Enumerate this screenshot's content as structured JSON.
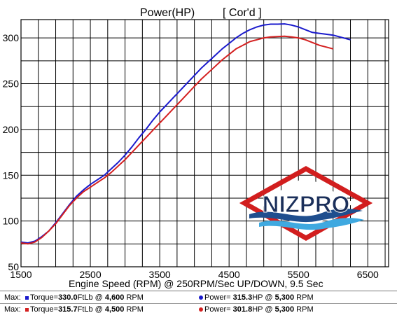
{
  "chart_data": {
    "type": "line",
    "title": "Power(HP)",
    "title_note": "[ Cor'd ]",
    "xlabel": "Engine Speed (RPM) @ 250RPM/Sec UP/DOWN, 9.5 Sec",
    "ylabel": "",
    "xlim": [
      1500,
      6800
    ],
    "ylim": [
      50,
      320
    ],
    "x_ticks": [
      1500,
      2500,
      3500,
      4500,
      5500,
      6500
    ],
    "x_tick_labels": [
      "1500",
      "2500",
      "3500",
      "4500",
      "5500",
      "6500"
    ],
    "x_grid_step": 250,
    "y_ticks": [
      50,
      100,
      150,
      200,
      250,
      300
    ],
    "y_tick_labels": [
      "50",
      "100",
      "150",
      "200",
      "250",
      "300"
    ],
    "y_grid_step": 25,
    "grid": true,
    "series": [
      {
        "color": "#1a1acc",
        "x": [
          1500,
          1600,
          1700,
          1800,
          1900,
          2000,
          2100,
          2200,
          2300,
          2400,
          2500,
          2600,
          2700,
          2800,
          2900,
          3000,
          3100,
          3200,
          3300,
          3400,
          3500,
          3600,
          3700,
          3800,
          3900,
          4000,
          4100,
          4200,
          4300,
          4400,
          4500,
          4600,
          4700,
          4800,
          4900,
          5000,
          5100,
          5200,
          5300,
          5400,
          5500,
          5600,
          5700,
          5800,
          5900,
          6000,
          6100,
          6200,
          6250
        ],
        "y": [
          77,
          76,
          78,
          83,
          89,
          98,
          108,
          118,
          127,
          134,
          140,
          145,
          150,
          157,
          164,
          172,
          181,
          191,
          200,
          210,
          219,
          227,
          235,
          243,
          251,
          259,
          267,
          274,
          281,
          288,
          294,
          300,
          305,
          309,
          312,
          314,
          315,
          315,
          315.3,
          314,
          312,
          309,
          306,
          305,
          304,
          303,
          301,
          299,
          298
        ]
      },
      {
        "color": "#d42020",
        "x": [
          1500,
          1600,
          1700,
          1800,
          1900,
          2000,
          2100,
          2200,
          2300,
          2400,
          2500,
          2600,
          2700,
          2800,
          2900,
          3000,
          3100,
          3200,
          3300,
          3400,
          3500,
          3600,
          3700,
          3800,
          3900,
          4000,
          4100,
          4200,
          4300,
          4400,
          4500,
          4600,
          4700,
          4800,
          4900,
          5000,
          5100,
          5200,
          5300,
          5400,
          5500,
          5600,
          5700,
          5800,
          5900,
          6000
        ],
        "y": [
          76,
          75,
          77,
          82,
          89,
          97,
          107,
          117,
          125,
          132,
          137,
          142,
          147,
          153,
          160,
          167,
          175,
          183,
          191,
          199,
          207,
          215,
          223,
          231,
          239,
          247,
          255,
          262,
          269,
          276,
          282,
          288,
          292,
          296,
          298,
          300,
          301,
          301.5,
          301.8,
          301,
          300,
          298,
          295,
          292,
          290,
          288
        ]
      }
    ]
  },
  "logo": {
    "text": "NIZPRO"
  },
  "max_table": {
    "rows": [
      {
        "label": "Max:",
        "color": "#1a1acc",
        "torque_prefix": "Torque=",
        "torque_value": "330.0",
        "torque_unit": "FtLb @",
        "torque_rpm": "4,600",
        "torque_rpm_unit": "RPM",
        "power_prefix": "Power=",
        "power_value": "315.3",
        "power_unit": "HP @",
        "power_rpm": "5,300",
        "power_rpm_unit": "RPM"
      },
      {
        "label": "Max:",
        "color": "#d42020",
        "torque_prefix": "Torque=",
        "torque_value": "315.7",
        "torque_unit": "FtLb @",
        "torque_rpm": "4,500",
        "torque_rpm_unit": "RPM",
        "power_prefix": "Power=",
        "power_value": "301.8",
        "power_unit": "HP @",
        "power_rpm": "5,300",
        "power_rpm_unit": "RPM"
      }
    ]
  }
}
